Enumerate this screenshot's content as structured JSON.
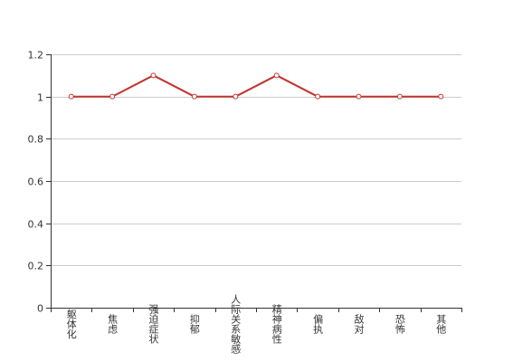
{
  "chart_data": {
    "type": "line",
    "categories": [
      "躯体化",
      "焦虑",
      "强迫症状",
      "抑郁",
      "人际关系敏感",
      "精神病性",
      "偏执",
      "敌对",
      "恐怖",
      "其他"
    ],
    "series": [
      {
        "values": [
          1,
          1,
          1.1,
          1,
          1,
          1.1,
          1,
          1,
          1,
          1
        ]
      }
    ],
    "ylim": [
      0,
      1.2
    ],
    "yticks": [
      0,
      0.2,
      0.4,
      0.6,
      0.8,
      1,
      1.2
    ],
    "ytick_labels": [
      "0",
      "0.2",
      "0.4",
      "0.6",
      "0.8",
      "1",
      "1.2"
    ],
    "grid": true,
    "legend": "none",
    "title": "",
    "xlabel": "",
    "ylabel": "",
    "colors": {
      "line": "#c23531",
      "marker_fill": "#ffffff",
      "grid": "#cccccc",
      "axis": "#333333"
    }
  }
}
